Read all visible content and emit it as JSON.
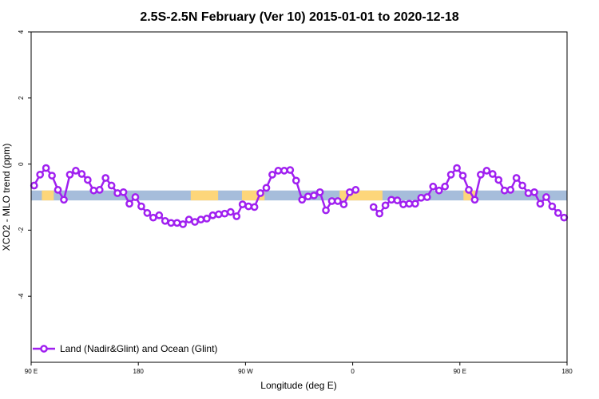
{
  "chart_data": {
    "type": "line",
    "title": "2.5S-2.5N February (Ver 10)   2015-01-01 to 2020-12-18",
    "xlabel": "Longitude (deg E)",
    "ylabel": "XCO2 - MLO trend (ppm)",
    "xlim": [
      90,
      540
    ],
    "ylim": [
      -6,
      4
    ],
    "xticks": [
      {
        "value": 90,
        "label": "90 E"
      },
      {
        "value": 180,
        "label": "180"
      },
      {
        "value": 270,
        "label": "90 W"
      },
      {
        "value": 360,
        "label": "0"
      },
      {
        "value": 450,
        "label": "90 E"
      },
      {
        "value": 540,
        "label": "180"
      }
    ],
    "yticks": [
      {
        "value": 4,
        "label": "4"
      },
      {
        "value": 2,
        "label": "2"
      },
      {
        "value": 0,
        "label": "0"
      },
      {
        "value": -2,
        "label": "-2"
      },
      {
        "value": -4,
        "label": "-4"
      }
    ],
    "grid": false,
    "legend_position": "bottom-left",
    "land_mask_band": {
      "y_range": [
        -1.1,
        -0.8
      ],
      "ocean_color": "#a6bddb",
      "land_color": "#fdd67a",
      "land_segments": [
        [
          99,
          109
        ],
        [
          224,
          247
        ],
        [
          267,
          286
        ],
        [
          349,
          385
        ],
        [
          453,
          463
        ]
      ]
    },
    "series": [
      {
        "name": "Land (Nadir&Glint) and Ocean (Glint)",
        "color": "#a020f0",
        "segments": [
          {
            "x": [
              92.5,
              97.5,
              102.5,
              107.5,
              112.5,
              117.5,
              122.5,
              127.5,
              132.5,
              137.5,
              142.5,
              147.5,
              152.5,
              157.5,
              162.5,
              167.5,
              172.5,
              177.5,
              182.5,
              187.5,
              192.5,
              197.5,
              202.5,
              207.5,
              212.5,
              217.5,
              222.5,
              227.5,
              232.5,
              237.5,
              242.5,
              247.5,
              252.5,
              257.5,
              262.5,
              267.5,
              272.5,
              277.5,
              282.5,
              287.5,
              292.5,
              297.5,
              302.5,
              307.5,
              312.5,
              317.5,
              322.5,
              327.5,
              332.5,
              337.5,
              342.5,
              347.5,
              352.5,
              357.5,
              362.5
            ],
            "y": [
              -0.65,
              -0.32,
              -0.12,
              -0.35,
              -0.78,
              -1.08,
              -0.32,
              -0.2,
              -0.3,
              -0.48,
              -0.8,
              -0.78,
              -0.42,
              -0.65,
              -0.88,
              -0.85,
              -1.2,
              -1.0,
              -1.28,
              -1.48,
              -1.62,
              -1.55,
              -1.72,
              -1.78,
              -1.78,
              -1.82,
              -1.68,
              -1.75,
              -1.68,
              -1.65,
              -1.55,
              -1.52,
              -1.5,
              -1.45,
              -1.58,
              -1.22,
              -1.28,
              -1.3,
              -0.88,
              -0.72,
              -0.32,
              -0.2,
              -0.2,
              -0.18,
              -0.5,
              -1.08,
              -0.98,
              -0.95,
              -0.85,
              -1.4,
              -1.12,
              -1.12,
              -1.22,
              -0.85,
              -0.78
            ]
          },
          {
            "x": [
              377.5,
              382.5,
              387.5,
              392.5,
              397.5,
              402.5,
              407.5,
              412.5,
              417.5,
              422.5,
              427.5,
              432.5,
              437.5,
              442.5,
              447.5,
              452.5,
              457.5,
              462.5,
              467.5,
              472.5,
              477.5,
              482.5,
              487.5,
              492.5,
              497.5,
              502.5,
              507.5,
              512.5,
              517.5,
              522.5,
              527.5,
              532.5,
              537.5
            ],
            "y": [
              -1.3,
              -1.5,
              -1.25,
              -1.08,
              -1.1,
              -1.22,
              -1.2,
              -1.2,
              -1.02,
              -1.0,
              -0.68,
              -0.8,
              -0.68,
              -0.32,
              -0.12,
              -0.35,
              -0.78,
              -1.08,
              -0.32,
              -0.2,
              -0.3,
              -0.48,
              -0.8,
              -0.78,
              -0.42,
              -0.65,
              -0.88,
              -0.85,
              -1.2,
              -1.0,
              -1.28,
              -1.48,
              -1.62
            ]
          }
        ]
      }
    ]
  }
}
